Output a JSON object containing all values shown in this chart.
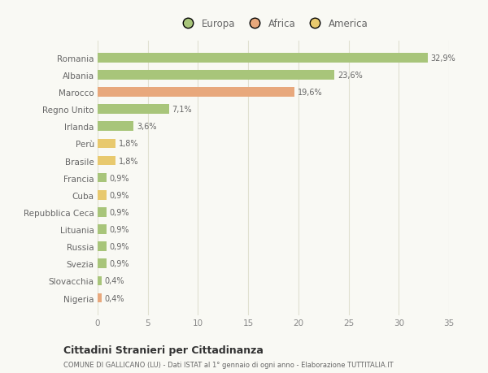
{
  "categories": [
    "Romania",
    "Albania",
    "Marocco",
    "Regno Unito",
    "Irlanda",
    "Perù",
    "Brasile",
    "Francia",
    "Cuba",
    "Repubblica Ceca",
    "Lituania",
    "Russia",
    "Svezia",
    "Slovacchia",
    "Nigeria"
  ],
  "values": [
    32.9,
    23.6,
    19.6,
    7.1,
    3.6,
    1.8,
    1.8,
    0.9,
    0.9,
    0.9,
    0.9,
    0.9,
    0.9,
    0.4,
    0.4
  ],
  "bar_colors": [
    "#a8c57a",
    "#a8c57a",
    "#e8a87c",
    "#a8c57a",
    "#a8c57a",
    "#e8c96e",
    "#e8c96e",
    "#a8c57a",
    "#e8c96e",
    "#a8c57a",
    "#a8c57a",
    "#a8c57a",
    "#a8c57a",
    "#a8c57a",
    "#e8a87c"
  ],
  "labels": [
    "32,9%",
    "23,6%",
    "19,6%",
    "7,1%",
    "3,6%",
    "1,8%",
    "1,8%",
    "0,9%",
    "0,9%",
    "0,9%",
    "0,9%",
    "0,9%",
    "0,9%",
    "0,4%",
    "0,4%"
  ],
  "legend": [
    {
      "label": "Europa",
      "color": "#a8c57a"
    },
    {
      "label": "Africa",
      "color": "#e8a87c"
    },
    {
      "label": "America",
      "color": "#e8c96e"
    }
  ],
  "title": "Cittadini Stranieri per Cittadinanza",
  "subtitle": "COMUNE DI GALLICANO (LU) - Dati ISTAT al 1° gennaio di ogni anno - Elaborazione TUTTITALIA.IT",
  "xlim": [
    0,
    35
  ],
  "xticks": [
    0,
    5,
    10,
    15,
    20,
    25,
    30,
    35
  ],
  "background_color": "#f9f9f4",
  "grid_color": "#e0e0d0",
  "bar_height": 0.55
}
